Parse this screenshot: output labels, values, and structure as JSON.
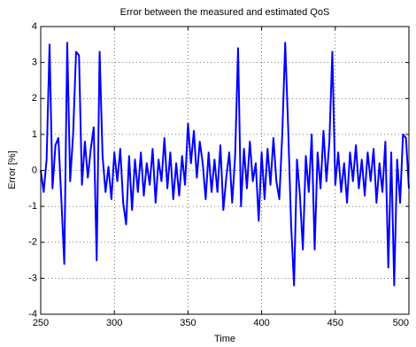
{
  "chart_data": {
    "type": "line",
    "title": "Error between the measured and estimated QoS",
    "x_label": "Time",
    "y_label": "Error [%]",
    "x": [
      250,
      252,
      254,
      256,
      258,
      260,
      262,
      264,
      266,
      268,
      270,
      272,
      274,
      276,
      278,
      280,
      282,
      284,
      286,
      288,
      290,
      292,
      294,
      296,
      298,
      300,
      302,
      304,
      306,
      308,
      310,
      312,
      314,
      316,
      318,
      320,
      322,
      324,
      326,
      328,
      330,
      332,
      334,
      336,
      338,
      340,
      342,
      344,
      346,
      348,
      350,
      352,
      354,
      356,
      358,
      360,
      362,
      364,
      366,
      368,
      370,
      372,
      374,
      376,
      378,
      380,
      382,
      384,
      386,
      388,
      390,
      392,
      394,
      396,
      398,
      400,
      402,
      404,
      406,
      408,
      410,
      412,
      414,
      416,
      418,
      420,
      422,
      424,
      426,
      428,
      430,
      432,
      434,
      436,
      438,
      440,
      442,
      444,
      446,
      448,
      450,
      452,
      454,
      456,
      458,
      460,
      462,
      464,
      466,
      468,
      470,
      472,
      474,
      476,
      478,
      480,
      482,
      484,
      486,
      488,
      490,
      492,
      494,
      496,
      498,
      500
    ],
    "series": [
      {
        "color": "#0000ff",
        "values": [
          0.0,
          -0.6,
          0.3,
          3.5,
          -0.5,
          0.7,
          0.9,
          -0.8,
          -2.6,
          3.55,
          -0.3,
          1.0,
          3.3,
          3.2,
          -0.4,
          0.8,
          -0.2,
          0.6,
          1.2,
          -2.5,
          3.3,
          0.4,
          -0.6,
          0.1,
          -0.8,
          0.5,
          -0.3,
          0.6,
          -0.9,
          -1.5,
          0.4,
          -1.1,
          0.3,
          -0.6,
          0.5,
          -0.7,
          0.2,
          -0.4,
          0.6,
          -0.9,
          0.3,
          -0.3,
          0.9,
          -0.5,
          0.5,
          -0.8,
          0.2,
          -0.7,
          0.4,
          -0.4,
          1.3,
          0.2,
          1.1,
          -0.2,
          0.8,
          0.2,
          -0.8,
          0.5,
          -0.6,
          0.3,
          -0.6,
          0.7,
          -1.1,
          -0.2,
          0.5,
          -0.9,
          0.4,
          3.4,
          -1.0,
          0.6,
          -0.5,
          0.8,
          -0.3,
          0.2,
          -1.4,
          0.5,
          -0.8,
          0.6,
          -0.4,
          0.9,
          -0.3,
          -0.8,
          1.0,
          3.55,
          1.2,
          -1.5,
          -3.2,
          0.3,
          -0.7,
          -2.2,
          0.4,
          -0.6,
          1.0,
          -2.2,
          0.5,
          -0.5,
          1.1,
          -0.3,
          0.8,
          3.3,
          -0.4,
          0.5,
          -0.6,
          0.2,
          -0.9,
          0.5,
          -0.3,
          0.7,
          -0.5,
          0.3,
          -0.7,
          0.5,
          -0.3,
          0.6,
          -0.9,
          0.2,
          -0.6,
          0.8,
          -2.7,
          0.5,
          -3.2,
          0.3,
          -0.9,
          1.0,
          0.9,
          -0.5
        ]
      }
    ],
    "xlim": [
      250,
      500
    ],
    "xticks": [
      250,
      300,
      350,
      400,
      450,
      500
    ],
    "ylim": [
      -4,
      4
    ],
    "yticks": [
      -4,
      -3,
      -2,
      -1,
      0,
      1,
      2,
      3,
      4
    ],
    "grid": true
  }
}
